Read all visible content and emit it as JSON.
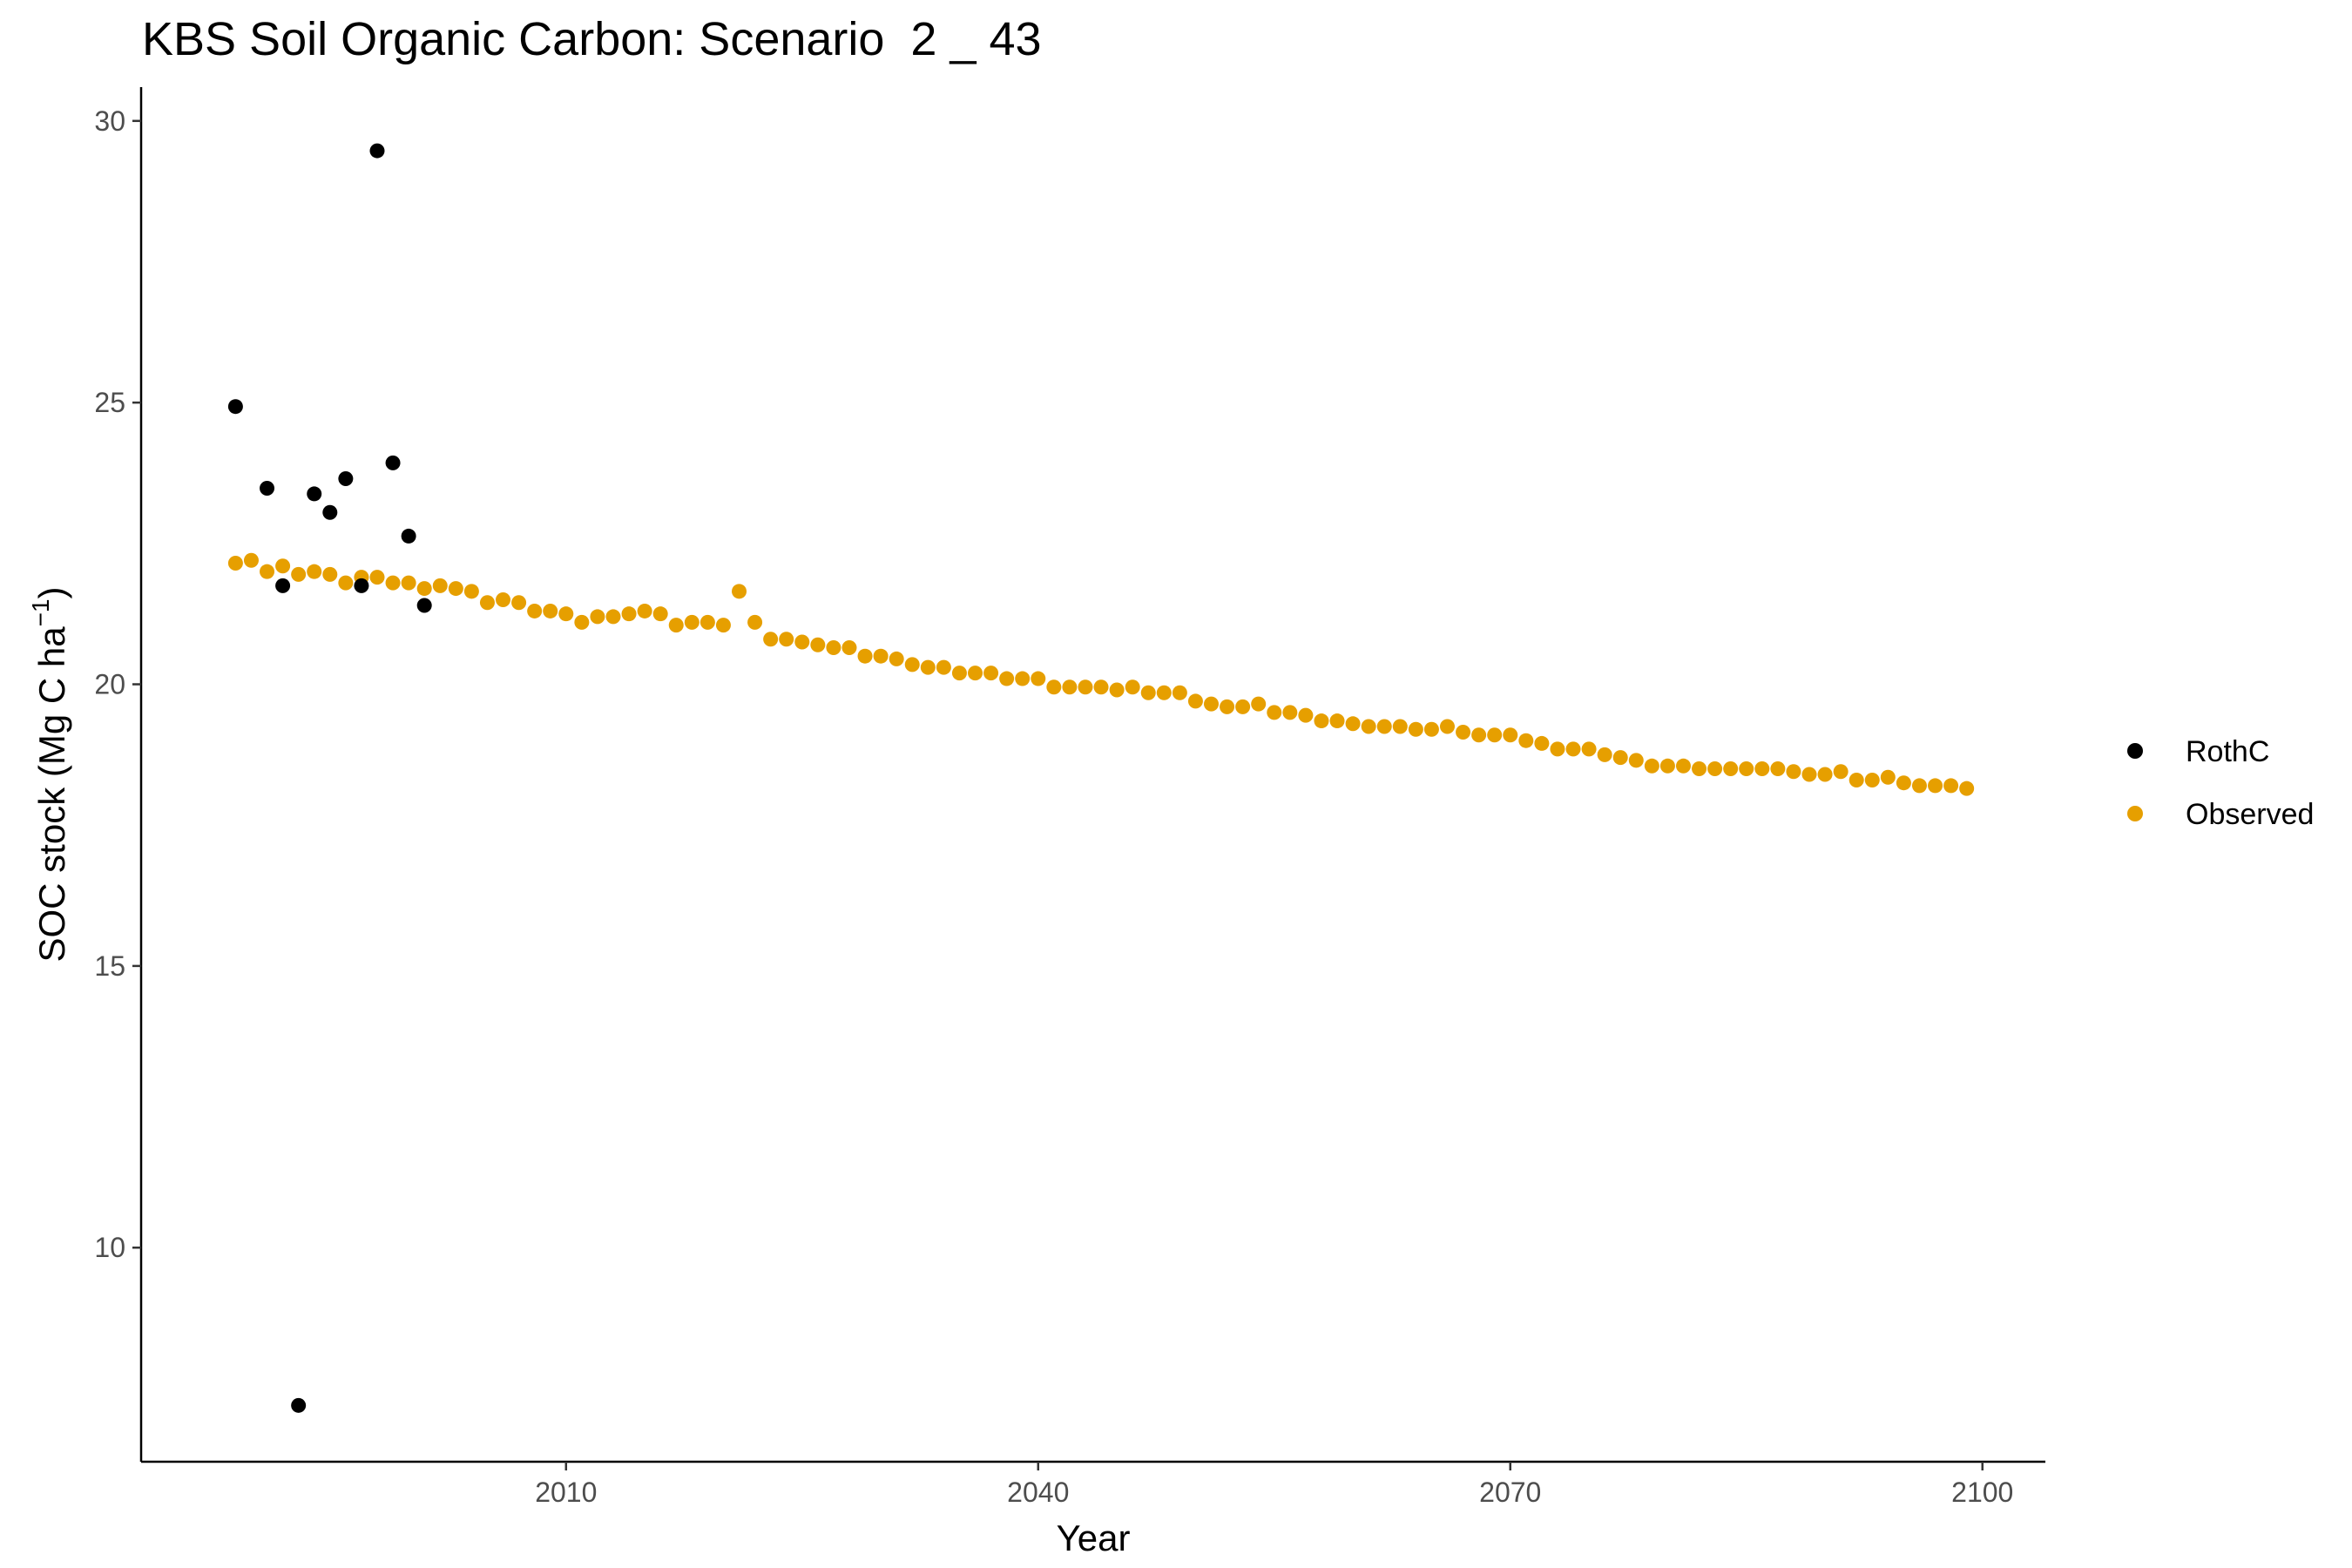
{
  "chart_data": {
    "type": "scatter",
    "title": "KBS Soil Organic Carbon: Scenario  2 _ 43",
    "xlabel": "Year",
    "ylabel": "SOC stock (Mg C ha",
    "ylabel_unit_power": "−1",
    "ylabel_suffix": ")",
    "xlim": [
      1983,
      2104
    ],
    "ylim": [
      6.2,
      30.6
    ],
    "x_ticks": [
      2010,
      2040,
      2070,
      2100
    ],
    "y_ticks": [
      10,
      15,
      20,
      25,
      30
    ],
    "grid": false,
    "legend": "right",
    "series": [
      {
        "name": "RothC",
        "color": "#000000",
        "x": [
          1989,
          1991,
          1992,
          1993,
          1994,
          1995,
          1996,
          1997,
          1998,
          1999,
          2000,
          2001
        ],
        "y": [
          24.93,
          23.48,
          21.75,
          7.2,
          23.38,
          23.05,
          23.65,
          21.75,
          29.47,
          23.93,
          22.63,
          21.4
        ]
      },
      {
        "name": "Observed",
        "color": "#e69f00",
        "x": [
          1989,
          1990,
          1991,
          1992,
          1993,
          1994,
          1995,
          1996,
          1997,
          1998,
          1999,
          2000,
          2001,
          2002,
          2003,
          2004,
          2005,
          2006,
          2007,
          2008,
          2009,
          2010,
          2011,
          2012,
          2013,
          2014,
          2015,
          2016,
          2017,
          2018,
          2019,
          2020,
          2021,
          2022,
          2023,
          2024,
          2025,
          2026,
          2027,
          2028,
          2029,
          2030,
          2031,
          2032,
          2033,
          2034,
          2035,
          2036,
          2037,
          2038,
          2039,
          2040,
          2041,
          2042,
          2043,
          2044,
          2045,
          2046,
          2047,
          2048,
          2049,
          2050,
          2051,
          2052,
          2053,
          2054,
          2055,
          2056,
          2057,
          2058,
          2059,
          2060,
          2061,
          2062,
          2063,
          2064,
          2065,
          2066,
          2067,
          2068,
          2069,
          2070,
          2071,
          2072,
          2073,
          2074,
          2075,
          2076,
          2077,
          2078,
          2079,
          2080,
          2081,
          2082,
          2083,
          2084,
          2085,
          2086,
          2087,
          2088,
          2089,
          2090,
          2091,
          2092,
          2093,
          2094,
          2095,
          2096,
          2097,
          2098,
          2099
        ],
        "y": [
          22.15,
          22.2,
          22.0,
          22.1,
          21.95,
          22.0,
          21.95,
          21.8,
          21.9,
          21.9,
          21.8,
          21.8,
          21.7,
          21.75,
          21.7,
          21.65,
          21.45,
          21.5,
          21.45,
          21.3,
          21.3,
          21.25,
          21.1,
          21.2,
          21.2,
          21.25,
          21.3,
          21.25,
          21.05,
          21.1,
          21.1,
          21.05,
          21.65,
          21.1,
          20.8,
          20.8,
          20.75,
          20.7,
          20.65,
          20.65,
          20.5,
          20.5,
          20.45,
          20.35,
          20.3,
          20.3,
          20.2,
          20.2,
          20.2,
          20.1,
          20.1,
          20.1,
          19.95,
          19.95,
          19.95,
          19.95,
          19.9,
          19.95,
          19.85,
          19.85,
          19.85,
          19.7,
          19.65,
          19.6,
          19.6,
          19.65,
          19.5,
          19.5,
          19.45,
          19.35,
          19.35,
          19.3,
          19.25,
          19.25,
          19.25,
          19.2,
          19.2,
          19.25,
          19.15,
          19.1,
          19.1,
          19.1,
          19.0,
          18.95,
          18.85,
          18.85,
          18.85,
          18.75,
          18.7,
          18.65,
          18.55,
          18.55,
          18.55,
          18.5,
          18.5,
          18.5,
          18.5,
          18.5,
          18.5,
          18.45,
          18.4,
          18.4,
          18.45,
          18.3,
          18.3,
          18.35,
          18.25,
          18.2,
          18.2,
          18.2,
          18.15
        ]
      }
    ]
  }
}
